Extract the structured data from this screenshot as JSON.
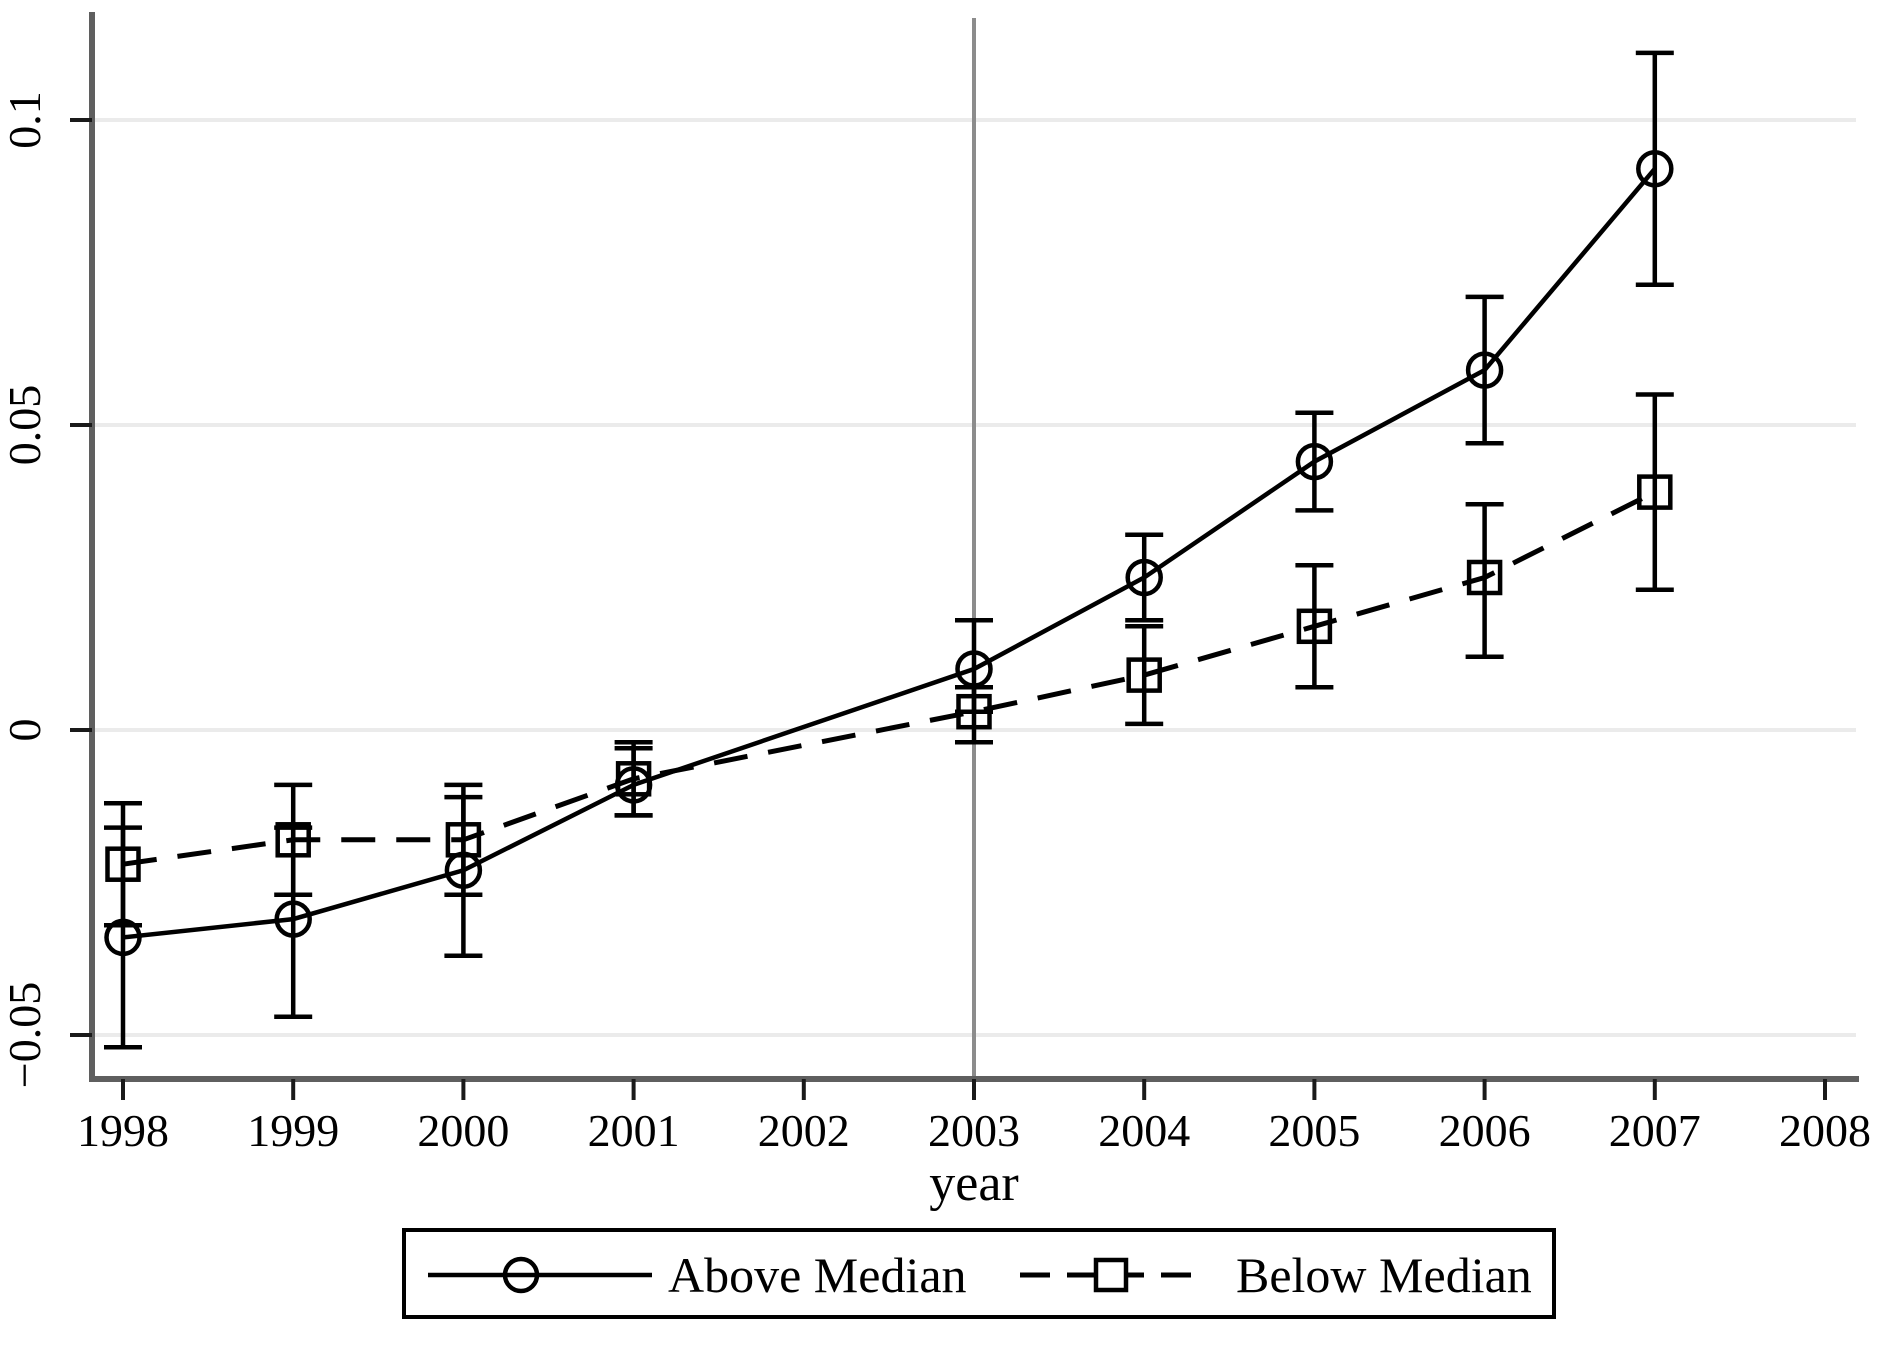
{
  "chart_data": {
    "type": "line",
    "title": "",
    "xlabel": "year",
    "ylabel": "",
    "grid": "horizontal",
    "legend_position": "bottom-center",
    "xlim": [
      1997.8,
      2008.2
    ],
    "ylim": [
      -0.058,
      0.115
    ],
    "x_ticks": [
      {
        "value": 1998,
        "label": "1998"
      },
      {
        "value": 1999,
        "label": "1999"
      },
      {
        "value": 2000,
        "label": "2000"
      },
      {
        "value": 2001,
        "label": "2001"
      },
      {
        "value": 2002,
        "label": "2002"
      },
      {
        "value": 2003,
        "label": "2003"
      },
      {
        "value": 2004,
        "label": "2004"
      },
      {
        "value": 2005,
        "label": "2005"
      },
      {
        "value": 2006,
        "label": "2006"
      },
      {
        "value": 2007,
        "label": "2007"
      },
      {
        "value": 2008,
        "label": "2008"
      }
    ],
    "y_ticks": [
      {
        "value": 0.1,
        "label": "0.1"
      },
      {
        "value": 0.05,
        "label": "0.05"
      },
      {
        "value": 0,
        "label": "0"
      },
      {
        "value": -0.05,
        "label": "−0.05"
      }
    ],
    "reference_line_x": 2003,
    "note_omitted_year": 2002,
    "series": [
      {
        "name": "Above Median",
        "marker": "circle",
        "line_style": "solid",
        "color": "#000000",
        "x": [
          1998,
          1999,
          2000,
          2001,
          2003,
          2004,
          2005,
          2006,
          2007
        ],
        "values": [
          -0.034,
          -0.031,
          -0.023,
          -0.009,
          0.01,
          0.025,
          0.044,
          0.059,
          0.092
        ],
        "ci_low": [
          -0.052,
          -0.047,
          -0.037,
          -0.014,
          0.003,
          0.018,
          0.036,
          0.047,
          0.073
        ],
        "ci_high": [
          -0.016,
          -0.016,
          -0.011,
          -0.003,
          0.018,
          0.032,
          0.052,
          0.071,
          0.111
        ]
      },
      {
        "name": "Below Median",
        "marker": "square",
        "line_style": "dashed",
        "color": "#000000",
        "x": [
          1998,
          1999,
          2000,
          2001,
          2003,
          2004,
          2005,
          2006,
          2007
        ],
        "values": [
          -0.022,
          -0.018,
          -0.018,
          -0.008,
          0.003,
          0.009,
          0.017,
          0.025,
          0.039
        ],
        "ci_low": [
          -0.032,
          -0.027,
          -0.027,
          -0.014,
          -0.002,
          0.001,
          0.007,
          0.012,
          0.023
        ],
        "ci_high": [
          -0.012,
          -0.009,
          -0.009,
          -0.002,
          0.007,
          0.017,
          0.027,
          0.037,
          0.055
        ]
      }
    ]
  },
  "colors": {
    "background": "#ffffff",
    "axis": "#5f5f5f",
    "tick": "#1a1a1a",
    "grid": "#ebebeb",
    "reference_line": "#8c8c8c",
    "data": "#000000",
    "legend_border": "#000000"
  }
}
